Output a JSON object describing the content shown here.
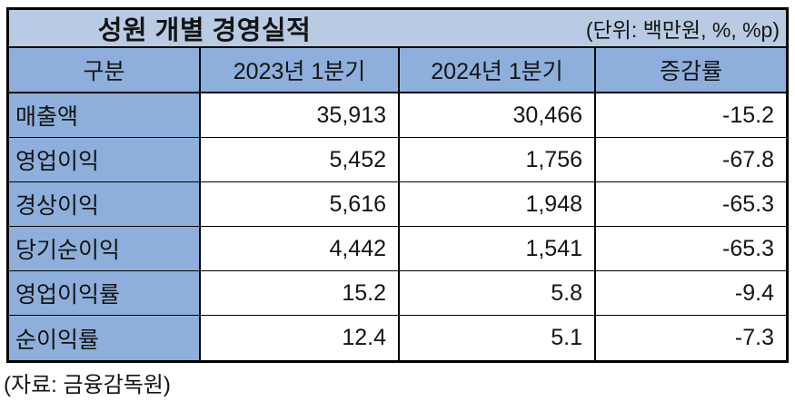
{
  "title": "성원 개별 경영실적",
  "unit_note": "(단위: 백만원, %, %p)",
  "source_note": "(자료: 금융감독원)",
  "colors": {
    "title_band_bg": "#b9cbe3",
    "header_bg": "#8eafdb",
    "border": "#000000"
  },
  "table": {
    "columns": [
      "구분",
      "2023년 1분기",
      "2024년 1분기",
      "증감률"
    ],
    "rows": [
      {
        "label": "매출액",
        "q1_2023": "35,913",
        "q1_2024": "30,466",
        "change": "-15.2"
      },
      {
        "label": "영업이익",
        "q1_2023": "5,452",
        "q1_2024": "1,756",
        "change": "-67.8"
      },
      {
        "label": "경상이익",
        "q1_2023": "5,616",
        "q1_2024": "1,948",
        "change": "-65.3"
      },
      {
        "label": "당기순이익",
        "q1_2023": "4,442",
        "q1_2024": "1,541",
        "change": "-65.3"
      },
      {
        "label": "영업이익률",
        "q1_2023": "15.2",
        "q1_2024": "5.8",
        "change": "-9.4"
      },
      {
        "label": "순이익률",
        "q1_2023": "12.4",
        "q1_2024": "5.1",
        "change": "-7.3"
      }
    ]
  },
  "chart_data": {
    "type": "table",
    "title": "성원 개별 경영실적",
    "unit": "백만원, %, %p",
    "columns": [
      "구분",
      "2023년 1분기",
      "2024년 1분기",
      "증감률"
    ],
    "rows": [
      [
        "매출액",
        35913,
        30466,
        -15.2
      ],
      [
        "영업이익",
        5452,
        1756,
        -67.8
      ],
      [
        "경상이익",
        5616,
        1948,
        -65.3
      ],
      [
        "당기순이익",
        4442,
        1541,
        -65.3
      ],
      [
        "영업이익률",
        15.2,
        5.8,
        -9.4
      ],
      [
        "순이익률",
        12.4,
        5.1,
        -7.3
      ]
    ],
    "source": "금융감독원"
  }
}
